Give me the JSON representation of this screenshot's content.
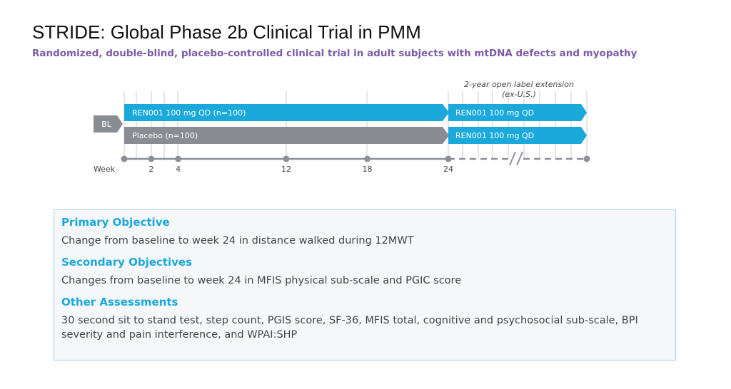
{
  "title": "STRIDE: Global Phase 2b Clinical Trial in PMM",
  "subtitle": "Randomized, double-blind, placebo-controlled clinical trial in adult subjects with mtDNA defects and myopathy",
  "colors": {
    "accent_purple": "#7b5ca8",
    "heading_blue": "#1ba9dc",
    "treatment_arm": "#1ba9dc",
    "placebo_arm": "#8a8c93",
    "axis": "#8e9099",
    "box_border": "#9fd6ec"
  },
  "diagram": {
    "baseline_label": "BL",
    "axis_label": "Week",
    "weeks": [
      0,
      2,
      4,
      12,
      18,
      24
    ],
    "week_labels": [
      "2",
      "4",
      "12",
      "18",
      "24"
    ],
    "arms": [
      {
        "label": "REN001 100 mg QD (n=100)",
        "color": "treatment_arm"
      },
      {
        "label": "Placebo (n=100)",
        "color": "placebo_arm"
      }
    ],
    "extension": {
      "title_line1": "2-year open label extension",
      "title_line2": "(ex-U.S.)",
      "arms": [
        {
          "label": "REN001 100 mg QD"
        },
        {
          "label": "REN001 100 mg QD"
        }
      ]
    }
  },
  "objectives": [
    {
      "heading": "Primary Objective",
      "text": "Change from baseline to week 24 in distance walked during 12MWT"
    },
    {
      "heading": "Secondary Objectives",
      "text": "Changes from baseline to week 24 in MFIS physical sub-scale and PGIC score"
    },
    {
      "heading": "Other Assessments",
      "text": "30 second sit to stand test, step count, PGIS score, SF-36, MFIS total, cognitive and psychosocial sub-scale, BPI severity and pain interference, and WPAI:SHP"
    }
  ]
}
